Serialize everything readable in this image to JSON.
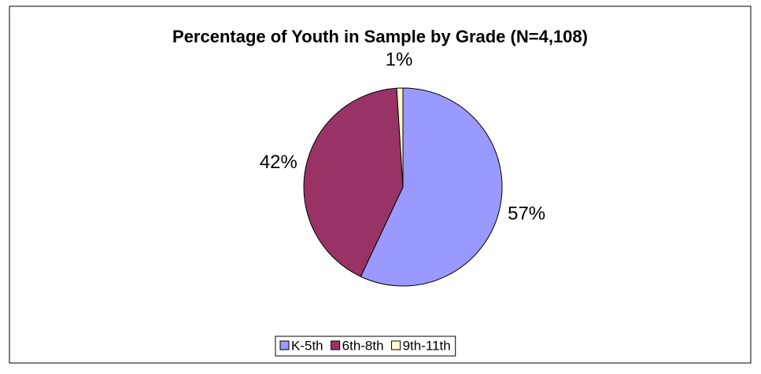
{
  "chart_data": {
    "type": "pie",
    "title": "Percentage of Youth in Sample by Grade (N=4,108)",
    "categories": [
      "K-5th",
      "6th-8th",
      "9th-11th"
    ],
    "values": [
      57,
      42,
      1
    ],
    "value_labels": [
      "57%",
      "42%",
      "1%"
    ],
    "colors": [
      "#9999ff",
      "#993366",
      "#ffffcc"
    ],
    "legend": "bottom"
  }
}
